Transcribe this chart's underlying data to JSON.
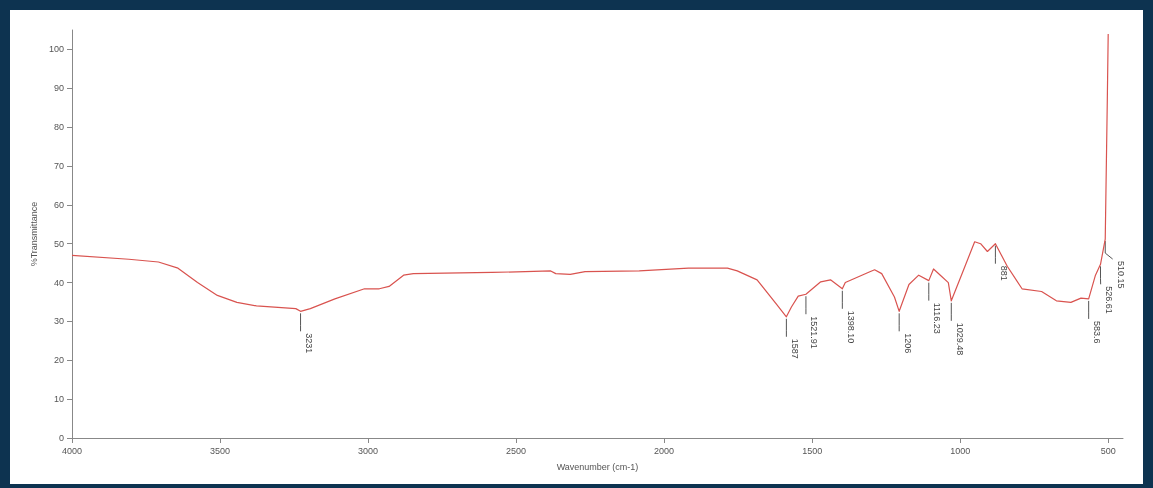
{
  "chart_data": {
    "type": "line",
    "xlabel": "Wavenumber (cm-1)",
    "ylabel": "%Transmittance",
    "x": [
      4000,
      3808,
      3708,
      3642,
      3576,
      3509,
      3443,
      3377,
      3244,
      3228,
      3195,
      3112,
      3012,
      2962,
      2929,
      2880,
      2847,
      2581,
      2383,
      2366,
      2317,
      2267,
      2084,
      1918,
      1786,
      1753,
      1686,
      1620,
      1587,
      1570,
      1547,
      1521,
      1471,
      1438,
      1398,
      1388,
      1305,
      1289,
      1265,
      1222,
      1206,
      1173,
      1140,
      1106,
      1090,
      1067,
      1040,
      1030,
      990,
      951,
      931,
      908,
      881,
      841,
      791,
      725,
      675,
      626,
      592,
      566,
      543,
      526,
      510,
      503,
      500
    ],
    "series": [
      {
        "color": "#d9534f",
        "values": [
          47,
          46,
          45.3,
          43.7,
          40,
          36.7,
          34.9,
          34,
          33.3,
          32.6,
          33.3,
          35.8,
          38.4,
          38.4,
          39,
          41.9,
          42.3,
          42.6,
          43,
          42.3,
          42.1,
          42.8,
          43,
          43.7,
          43.7,
          43,
          40.7,
          34.4,
          31.2,
          33.7,
          36.5,
          37,
          40.2,
          40.7,
          38.4,
          40,
          42.8,
          43.3,
          42.3,
          36.3,
          32.6,
          39.5,
          41.9,
          40.5,
          43.5,
          41.9,
          40,
          35.3,
          43,
          50.5,
          50,
          48,
          50,
          44.2,
          38.4,
          37.7,
          35.3,
          34.9,
          36,
          35.8,
          41.9,
          44.7,
          51.2,
          87,
          104
        ]
      }
    ],
    "xlim": [
      4000,
      450
    ],
    "ylim": [
      0,
      105
    ],
    "xticks": [
      4000,
      3500,
      3000,
      2500,
      2000,
      1500,
      1000,
      500
    ],
    "yticks": [
      0,
      10,
      20,
      30,
      40,
      50,
      60,
      70,
      80,
      90,
      100
    ],
    "grid": false,
    "marker": "none",
    "line_style": "solid",
    "annotations": [
      {
        "text": "3231",
        "x": 3228,
        "y": 32.6
      },
      {
        "text": "1587",
        "x": 1587,
        "y": 31.2
      },
      {
        "text": "1521.91",
        "x": 1521,
        "y": 37
      },
      {
        "text": "1398.10",
        "x": 1398,
        "y": 38.4
      },
      {
        "text": "1206",
        "x": 1206,
        "y": 32.6
      },
      {
        "text": "1116.23",
        "x": 1106,
        "y": 40.5
      },
      {
        "text": "1029.48",
        "x": 1030,
        "y": 35.3
      },
      {
        "text": "881",
        "x": 881,
        "y": 50
      },
      {
        "text": "583.6",
        "x": 566,
        "y": 35.8
      },
      {
        "text": "526.61",
        "x": 526,
        "y": 44.7
      },
      {
        "text": "510.15",
        "x": 510,
        "y": 51.2
      }
    ]
  }
}
